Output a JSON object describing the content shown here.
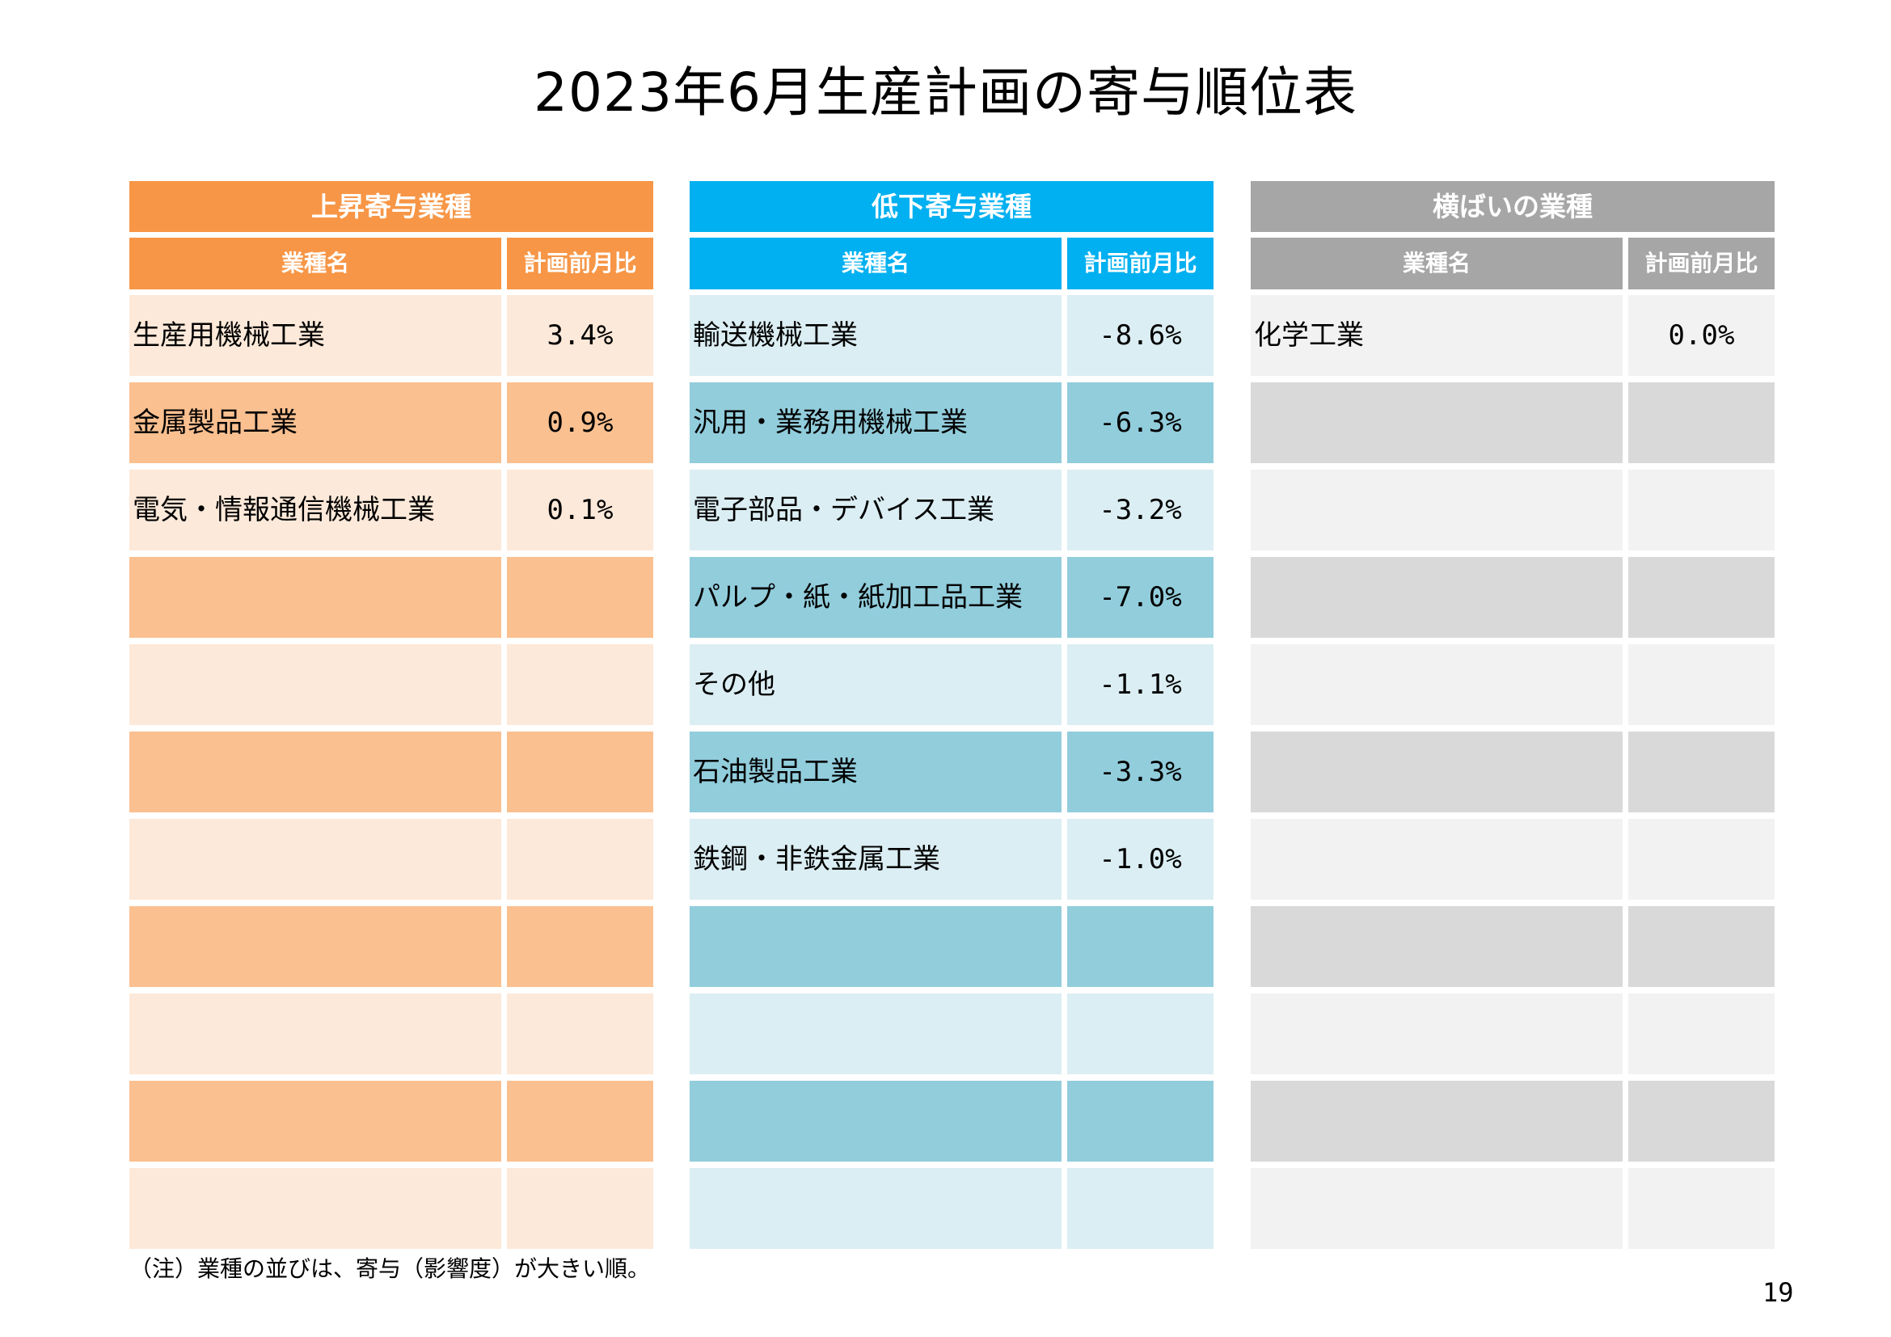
{
  "title": "2023年6月生産計画の寄与順位表",
  "colors": {
    "up_head": "#f79646",
    "up_light": "#fde9d9",
    "up_dark": "#fac090",
    "down_head": "#00b0f0",
    "down_light": "#dbeef3",
    "down_dark": "#92cddc",
    "flat_head": "#a6a6a6",
    "flat_light": "#f2f2f2",
    "flat_dark": "#d9d9d9"
  },
  "panels": [
    {
      "title": "上昇寄与業種",
      "col1_header": "業種名",
      "col2_header": "計画前月比",
      "rows": [
        {
          "name": "生産用機械工業",
          "value": "3.4%"
        },
        {
          "name": "金属製品工業",
          "value": "0.9%"
        },
        {
          "name": "電気・情報通信機械工業",
          "value": "0.1%"
        },
        {
          "name": "",
          "value": ""
        },
        {
          "name": "",
          "value": ""
        },
        {
          "name": "",
          "value": ""
        },
        {
          "name": "",
          "value": ""
        },
        {
          "name": "",
          "value": ""
        },
        {
          "name": "",
          "value": ""
        },
        {
          "name": "",
          "value": ""
        },
        {
          "name": "",
          "value": ""
        }
      ]
    },
    {
      "title": "低下寄与業種",
      "col1_header": "業種名",
      "col2_header": "計画前月比",
      "rows": [
        {
          "name": "輸送機械工業",
          "value": "-8.6%"
        },
        {
          "name": "汎用・業務用機械工業",
          "value": "-6.3%"
        },
        {
          "name": "電子部品・デバイス工業",
          "value": "-3.2%"
        },
        {
          "name": "パルプ・紙・紙加工品工業",
          "value": "-7.0%"
        },
        {
          "name": "その他",
          "value": "-1.1%"
        },
        {
          "name": "石油製品工業",
          "value": "-3.3%"
        },
        {
          "name": "鉄鋼・非鉄金属工業",
          "value": "-1.0%"
        },
        {
          "name": "",
          "value": ""
        },
        {
          "name": "",
          "value": ""
        },
        {
          "name": "",
          "value": ""
        },
        {
          "name": "",
          "value": ""
        }
      ]
    },
    {
      "title": "横ばいの業種",
      "col1_header": "業種名",
      "col2_header": "計画前月比",
      "rows": [
        {
          "name": "化学工業",
          "value": "0.0%"
        },
        {
          "name": "",
          "value": ""
        },
        {
          "name": "",
          "value": ""
        },
        {
          "name": "",
          "value": ""
        },
        {
          "name": "",
          "value": ""
        },
        {
          "name": "",
          "value": ""
        },
        {
          "name": "",
          "value": ""
        },
        {
          "name": "",
          "value": ""
        },
        {
          "name": "",
          "value": ""
        },
        {
          "name": "",
          "value": ""
        },
        {
          "name": "",
          "value": ""
        }
      ]
    }
  ],
  "note": "（注）業種の並びは、寄与（影響度）が大きい順。",
  "page_number": "19"
}
